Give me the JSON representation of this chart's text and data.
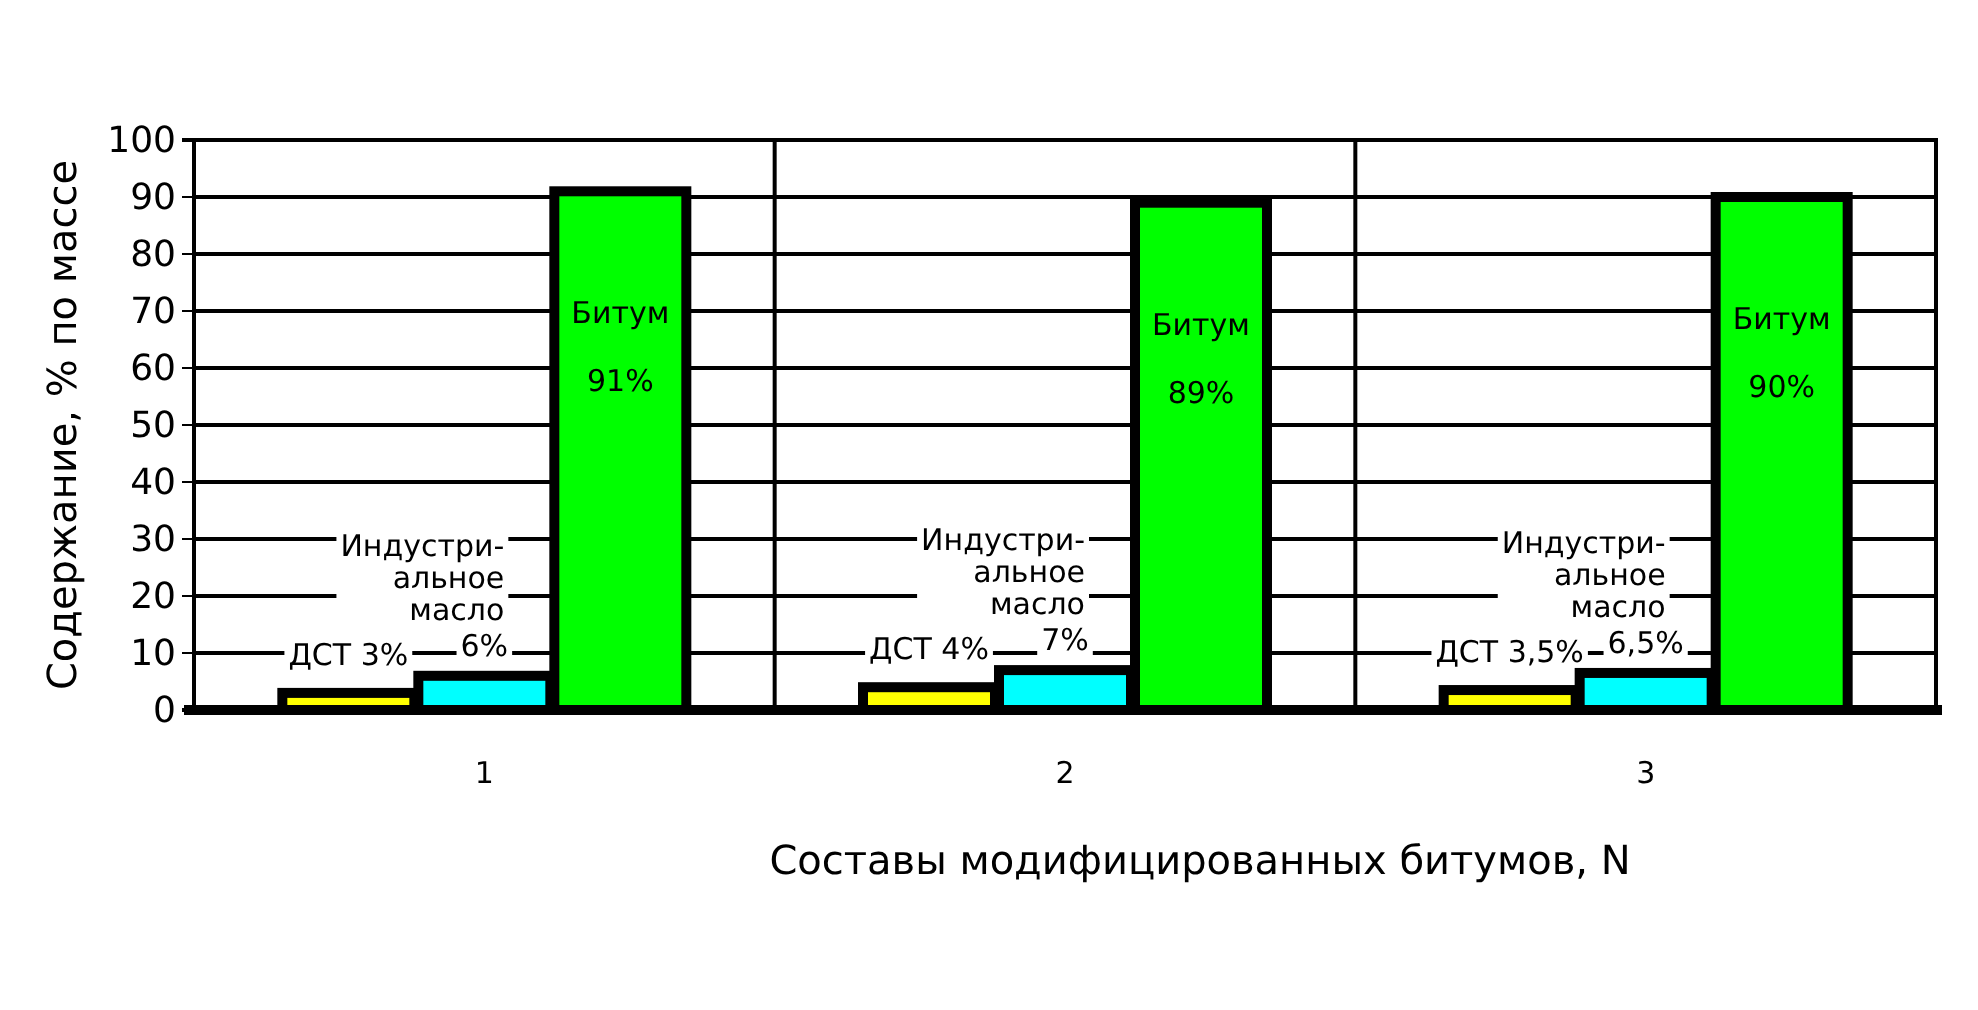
{
  "chart_data": {
    "type": "bar",
    "xlabel": "Составы модифицированных битумов, N",
    "ylabel": "Содержание, % по массе",
    "categories": [
      "1",
      "2",
      "3"
    ],
    "series": [
      {
        "name": "ДСТ",
        "color": "#ffff00",
        "values": [
          3,
          4,
          3.5
        ],
        "value_labels": [
          "3%",
          "4%",
          "3,5%"
        ]
      },
      {
        "name": "Индустри-альное масло",
        "color": "#00ffff",
        "values": [
          6,
          7,
          6.5
        ],
        "value_labels": [
          "6%",
          "7%",
          "6,5%"
        ]
      },
      {
        "name": "Битум",
        "color": "#00ff00",
        "values": [
          91,
          89,
          90
        ],
        "value_labels": [
          "91%",
          "89%",
          "90%"
        ]
      }
    ],
    "ylim": [
      0,
      100
    ],
    "yticks": [
      0,
      10,
      20,
      30,
      40,
      50,
      60,
      70,
      80,
      90,
      100
    ],
    "grid": true
  }
}
